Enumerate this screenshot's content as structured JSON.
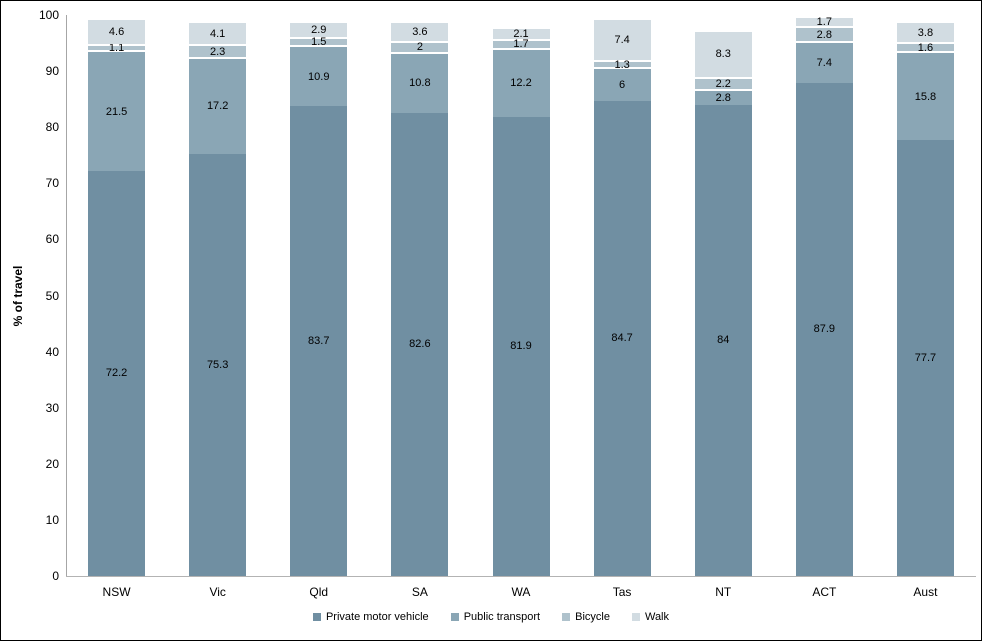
{
  "chart_data": {
    "type": "bar",
    "stacked": true,
    "title": "",
    "xlabel": "",
    "ylabel": "% of travel",
    "ylim": [
      0,
      100
    ],
    "ytick_step": 10,
    "grid": false,
    "legend_position": "bottom",
    "categories": [
      "NSW",
      "Vic",
      "Qld",
      "SA",
      "WA",
      "Tas",
      "NT",
      "ACT",
      "Aust"
    ],
    "series": [
      {
        "name": "Private motor vehicle",
        "color": "#708fa2",
        "values": [
          72.2,
          75.3,
          83.7,
          82.6,
          81.9,
          84.7,
          84,
          87.9,
          77.7
        ]
      },
      {
        "name": "Public transport",
        "color": "#8aa6b5",
        "values": [
          21.5,
          17.2,
          10.9,
          10.8,
          12.2,
          6,
          2.8,
          7.4,
          15.8
        ]
      },
      {
        "name": "Bicycle",
        "color": "#afc2cc",
        "values": [
          1.1,
          2.3,
          1.5,
          2,
          1.7,
          1.3,
          2.2,
          2.8,
          1.6
        ]
      },
      {
        "name": "Walk",
        "color": "#d2dce2",
        "values": [
          4.6,
          4.1,
          2.9,
          3.6,
          2.1,
          7.4,
          8.3,
          1.7,
          3.8
        ]
      }
    ]
  }
}
